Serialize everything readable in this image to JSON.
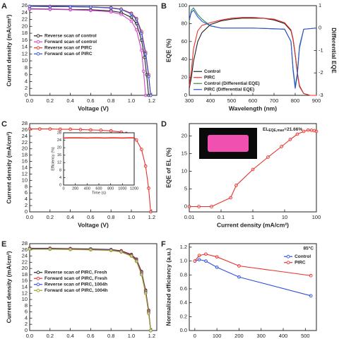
{
  "chart_data": [
    {
      "type": "line",
      "panel": "A",
      "xlabel": "Voltage (V)",
      "ylabel": "Current density (mA/cm²)",
      "xlim": [
        0,
        1.25
      ],
      "xticks": [
        {
          "value": 0,
          "label": "0.0"
        },
        0.2,
        0.4,
        0.6,
        0.8,
        {
          "value": 1,
          "label": "1.0"
        },
        1.2
      ],
      "ylim": [
        0,
        26
      ],
      "yticks": [
        0,
        2,
        4,
        6,
        8,
        10,
        12,
        14,
        16,
        18,
        20,
        22,
        24,
        26
      ],
      "markers": true,
      "legend": "center left",
      "series": [
        {
          "name": "Reverse scan of control",
          "color": "#222222",
          "x": [
            0,
            0.2,
            0.4,
            0.6,
            0.8,
            0.9,
            1.0,
            1.05,
            1.1,
            1.13,
            1.15,
            1.17
          ],
          "values": [
            25.1,
            25.0,
            24.9,
            24.8,
            24.5,
            24.0,
            22.6,
            20.8,
            16.0,
            11.0,
            6.0,
            0
          ]
        },
        {
          "name": "Forward scan of control",
          "color": "#d040c8",
          "x": [
            0,
            0.2,
            0.4,
            0.6,
            0.8,
            0.9,
            1.0,
            1.05,
            1.1,
            1.12,
            1.14
          ],
          "values": [
            25.0,
            24.9,
            24.8,
            24.6,
            24.2,
            23.5,
            21.5,
            19.0,
            13.0,
            7.0,
            0
          ]
        },
        {
          "name": "Reverse scan of PIRC",
          "color": "#e8302a",
          "x": [
            0,
            0.2,
            0.4,
            0.6,
            0.8,
            0.9,
            1.0,
            1.05,
            1.1,
            1.14,
            1.17,
            1.19
          ],
          "values": [
            25.8,
            25.8,
            25.7,
            25.6,
            25.4,
            25.0,
            23.8,
            22.3,
            18.5,
            12.5,
            6.0,
            0
          ]
        },
        {
          "name": "Forward scan of PIRC",
          "color": "#3050d8",
          "x": [
            0,
            0.2,
            0.4,
            0.6,
            0.8,
            0.9,
            1.0,
            1.05,
            1.1,
            1.14,
            1.17,
            1.19
          ],
          "values": [
            25.8,
            25.7,
            25.7,
            25.6,
            25.3,
            24.9,
            23.6,
            22.0,
            18.0,
            12.0,
            5.5,
            0
          ]
        }
      ]
    },
    {
      "type": "line",
      "panel": "B",
      "xlabel": "Wavelength (nm)",
      "ylabel": "EQE (%)",
      "y2label": "Differential EQE",
      "xlim": [
        300,
        900
      ],
      "xticks": [
        300,
        400,
        500,
        600,
        700,
        800,
        900
      ],
      "ylim": [
        0,
        100
      ],
      "yticks": [
        0,
        20,
        40,
        60,
        80,
        100
      ],
      "y2lim": [
        -3,
        1
      ],
      "y2ticks": [
        -3,
        -2,
        -1,
        0,
        1
      ],
      "markers": false,
      "legend": "lower left",
      "series": [
        {
          "name": "Control",
          "color": "#222222",
          "x": [
            300,
            310,
            320,
            340,
            360,
            400,
            450,
            500,
            550,
            600,
            650,
            700,
            750,
            780,
            790,
            800,
            810,
            820,
            840,
            870,
            900
          ],
          "values": [
            8,
            20,
            38,
            60,
            70,
            79,
            83,
            85,
            86,
            86,
            86,
            84,
            80,
            72,
            62,
            45,
            25,
            10,
            2,
            0,
            0
          ]
        },
        {
          "name": "PIRC",
          "color": "#e8302a",
          "x": [
            300,
            310,
            320,
            340,
            360,
            400,
            450,
            500,
            550,
            600,
            650,
            700,
            750,
            780,
            790,
            800,
            810,
            820,
            840,
            870,
            900
          ],
          "values": [
            10,
            28,
            52,
            72,
            78,
            81,
            84,
            86,
            87,
            87,
            86,
            85,
            81,
            73,
            63,
            46,
            26,
            11,
            2,
            0,
            0
          ]
        },
        {
          "name": "Control (Differential EQE)",
          "color": "#2e8b57",
          "axis": "y2",
          "x": [
            300,
            310,
            320,
            340,
            360,
            400,
            450,
            600,
            750,
            780,
            790,
            800,
            810,
            820,
            840,
            900
          ],
          "values": [
            0.3,
            0.8,
            0.9,
            0.6,
            0.4,
            0.1,
            0,
            0,
            -0.05,
            -0.6,
            -1.8,
            -2.6,
            -2.0,
            -0.8,
            -0.05,
            0
          ]
        },
        {
          "name": "PIRC (Differential EQE)",
          "color": "#3050d8",
          "axis": "y2",
          "x": [
            300,
            310,
            320,
            340,
            360,
            400,
            450,
            600,
            750,
            780,
            790,
            800,
            810,
            820,
            840,
            900
          ],
          "values": [
            0.4,
            0.7,
            0.8,
            0.5,
            0.3,
            0.1,
            0,
            0,
            -0.05,
            -0.6,
            -1.9,
            -2.7,
            -2.1,
            -0.9,
            -0.05,
            0
          ]
        }
      ]
    },
    {
      "type": "line",
      "panel": "C",
      "xlabel": "Voltage (V)",
      "ylabel": "Current density (mA/cm²)",
      "xlim": [
        0,
        1.25
      ],
      "xticks": [
        {
          "value": 0,
          "label": "0.0"
        },
        0.2,
        0.4,
        0.6,
        0.8,
        {
          "value": 1,
          "label": "1.0"
        },
        1.2
      ],
      "ylim": [
        0,
        28
      ],
      "yticks": [
        0,
        2,
        4,
        6,
        8,
        10,
        12,
        14,
        16,
        18,
        20,
        22,
        24,
        26,
        28
      ],
      "markers": true,
      "series": [
        {
          "color": "#e8302a",
          "x": [
            0,
            0.1,
            0.2,
            0.3,
            0.4,
            0.5,
            0.6,
            0.7,
            0.8,
            0.9,
            0.95,
            1.0,
            1.05,
            1.1,
            1.14,
            1.17,
            1.19
          ],
          "values": [
            26.3,
            26.3,
            26.3,
            26.2,
            26.2,
            26.1,
            26.0,
            25.9,
            25.7,
            25.3,
            24.9,
            24.2,
            22.8,
            19.8,
            14.5,
            7.5,
            0
          ]
        }
      ]
    },
    {
      "type": "line",
      "xlabel": "Time (s)",
      "ylabel": "Efficiency (%)",
      "xlim": [
        0,
        1200
      ],
      "xticks": [
        0,
        200,
        400,
        600,
        800,
        1000,
        1200
      ],
      "ylim": [
        0,
        28
      ],
      "yticks": [
        0,
        4,
        8,
        12,
        16,
        20,
        24,
        28
      ],
      "markers": false,
      "series": [
        {
          "color": "#e8302a",
          "x": [
            0,
            100,
            200,
            300,
            400,
            500,
            600,
            700,
            800,
            900,
            1000,
            1100,
            1200
          ],
          "values": [
            25.2,
            25.3,
            25.3,
            25.3,
            25.2,
            25.3,
            25.3,
            25.2,
            25.3,
            25.3,
            25.2,
            25.3,
            25.3
          ]
        }
      ]
    },
    {
      "type": "line",
      "panel": "D",
      "xlabel": "Current density (mA/cm²)",
      "ylabel": "EQE of EL (%)",
      "log_x": true,
      "xlim": [
        0.01,
        100
      ],
      "xticks": [
        0.01,
        0.1,
        1,
        10,
        100
      ],
      "ylim": [
        -1.5,
        23.5
      ],
      "yticks": [
        0,
        5,
        10,
        15,
        20
      ],
      "markers": true,
      "annotation": {
        "text": "EL",
        "sub": "EQE,max",
        "rest": "=21.66%"
      },
      "series": [
        {
          "color": "#e8302a",
          "x": [
            0.01,
            0.02,
            0.05,
            0.2,
            0.3,
            1,
            3,
            8,
            15,
            25,
            40,
            55,
            70,
            85,
            100
          ],
          "values": [
            0,
            0,
            0,
            2.5,
            6,
            10.5,
            14,
            17,
            19,
            20.5,
            21.3,
            21.66,
            21.6,
            21.5,
            21.3
          ]
        }
      ]
    },
    {
      "type": "line",
      "panel": "E",
      "ylabel": "Current density (mA/cm²)",
      "xlim": [
        0,
        1.25
      ],
      "xticks": [
        {
          "value": 0,
          "label": "0.0"
        },
        0.2,
        0.4,
        0.6,
        0.8,
        {
          "value": 1,
          "label": "1.0"
        },
        1.2
      ],
      "ylim": [
        0,
        28
      ],
      "yticks": [
        0,
        2,
        4,
        6,
        8,
        10,
        12,
        14,
        16,
        18,
        20,
        22,
        24,
        26,
        28
      ],
      "markers": true,
      "legend": "center left",
      "series": [
        {
          "name": "Reverse scan of PIRC, Fresh",
          "color": "#222222",
          "x": [
            0,
            0.2,
            0.4,
            0.6,
            0.8,
            0.9,
            1.0,
            1.05,
            1.1,
            1.14,
            1.17,
            1.19
          ],
          "values": [
            26.5,
            26.5,
            26.4,
            26.3,
            26.1,
            25.7,
            24.5,
            23.0,
            19.0,
            13.0,
            6.5,
            0
          ]
        },
        {
          "name": "Forward scan of PIRC, Fresh",
          "color": "#e8302a",
          "x": [
            0,
            0.2,
            0.4,
            0.6,
            0.8,
            0.9,
            1.0,
            1.05,
            1.1,
            1.14,
            1.17,
            1.19
          ],
          "values": [
            26.4,
            26.4,
            26.3,
            26.2,
            26.0,
            25.6,
            24.3,
            22.8,
            18.7,
            12.7,
            6.2,
            0
          ]
        },
        {
          "name": "Reverse scan of PIRC, 1004h",
          "color": "#3050d8",
          "x": [
            0,
            0.2,
            0.4,
            0.6,
            0.8,
            0.9,
            1.0,
            1.05,
            1.1,
            1.14,
            1.17,
            1.19
          ],
          "values": [
            26.3,
            26.3,
            26.2,
            26.1,
            25.9,
            25.4,
            24.1,
            22.5,
            18.3,
            12.3,
            5.8,
            0
          ]
        },
        {
          "name": "Forward scan of PIRC, 1004h",
          "color": "#9aa020",
          "x": [
            0,
            0.2,
            0.4,
            0.6,
            0.8,
            0.9,
            1.0,
            1.05,
            1.1,
            1.14,
            1.17,
            1.19
          ],
          "values": [
            26.2,
            26.2,
            26.1,
            26.0,
            25.8,
            25.3,
            24.0,
            22.3,
            18.0,
            12.0,
            5.5,
            0
          ]
        }
      ]
    },
    {
      "type": "line",
      "panel": "F",
      "ylabel": "Normalized efficiency (a.u.)",
      "xlim": [
        -25,
        550
      ],
      "xticks": [
        0,
        100,
        200,
        300,
        400,
        500
      ],
      "ylim": [
        0,
        1.25
      ],
      "yticks": [
        {
          "value": 0,
          "label": "0.0"
        },
        0.2,
        0.4,
        0.6,
        0.8,
        {
          "value": 1,
          "label": "1.0"
        },
        1.2
      ],
      "markers": true,
      "legend": "upper right",
      "annotation": "85°C",
      "series": [
        {
          "name": "Control",
          "color": "#3050d8",
          "x": [
            0,
            20,
            50,
            100,
            200,
            525
          ],
          "values": [
            1.0,
            1.02,
            1.0,
            0.91,
            0.77,
            0.5
          ]
        },
        {
          "name": "PIRC",
          "color": "#e8302a",
          "x": [
            0,
            20,
            50,
            100,
            200,
            525
          ],
          "values": [
            1.0,
            1.08,
            1.1,
            1.06,
            0.93,
            0.79
          ]
        }
      ]
    }
  ]
}
